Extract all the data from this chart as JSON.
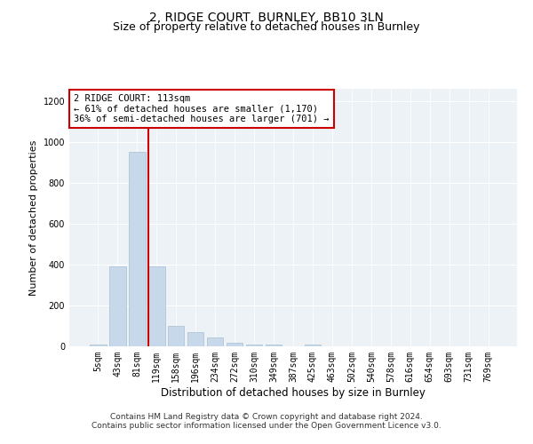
{
  "title": "2, RIDGE COURT, BURNLEY, BB10 3LN",
  "subtitle": "Size of property relative to detached houses in Burnley",
  "xlabel": "Distribution of detached houses by size in Burnley",
  "ylabel": "Number of detached properties",
  "footer_line1": "Contains HM Land Registry data © Crown copyright and database right 2024.",
  "footer_line2": "Contains public sector information licensed under the Open Government Licence v3.0.",
  "categories": [
    "5sqm",
    "43sqm",
    "81sqm",
    "119sqm",
    "158sqm",
    "196sqm",
    "234sqm",
    "272sqm",
    "310sqm",
    "349sqm",
    "387sqm",
    "425sqm",
    "463sqm",
    "502sqm",
    "540sqm",
    "578sqm",
    "616sqm",
    "654sqm",
    "693sqm",
    "731sqm",
    "769sqm"
  ],
  "bar_values": [
    8,
    390,
    950,
    390,
    100,
    70,
    42,
    18,
    10,
    8,
    2,
    8,
    0,
    0,
    0,
    0,
    0,
    0,
    0,
    0,
    0
  ],
  "bar_color": "#c8d8eb",
  "bar_edgecolor": "#a8bfd0",
  "vline_x_index": 3,
  "vline_color": "#cc0000",
  "annotation_line1": "2 RIDGE COURT: 113sqm",
  "annotation_line2": "← 61% of detached houses are smaller (1,170)",
  "annotation_line3": "36% of semi-detached houses are larger (701) →",
  "ylim": [
    0,
    1260
  ],
  "yticks": [
    0,
    200,
    400,
    600,
    800,
    1000,
    1200
  ],
  "plot_bg_color": "#edf2f7",
  "title_fontsize": 10,
  "subtitle_fontsize": 9,
  "annot_fontsize": 7.5,
  "footer_fontsize": 6.5,
  "ylabel_fontsize": 8,
  "xlabel_fontsize": 8.5,
  "tick_fontsize": 7
}
